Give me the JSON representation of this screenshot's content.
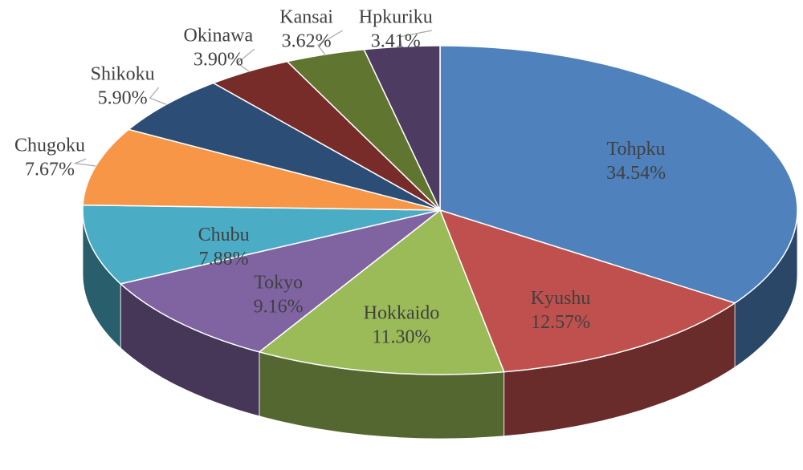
{
  "chart_data": {
    "type": "pie3d",
    "categories": [
      "Tohpku",
      "Kyushu",
      "Hokkaido",
      "Tokyo",
      "Chubu",
      "Chugoku",
      "Shikoku",
      "Okinawa",
      "Kansai",
      "Hpkuriku"
    ],
    "values": [
      34.54,
      12.57,
      11.3,
      9.16,
      7.88,
      7.67,
      5.9,
      3.9,
      3.62,
      3.41
    ],
    "value_labels": [
      "34.54%",
      "12.57%",
      "11.30%",
      "9.16%",
      "7.88%",
      "7.67%",
      "5.90%",
      "3.90%",
      "3.62%",
      "3.41%"
    ],
    "colors": [
      "#4f81bd",
      "#c0504d",
      "#9bbb59",
      "#8064a2",
      "#4bacc6",
      "#f79646",
      "#2c4d75",
      "#772c2a",
      "#5f7530",
      "#4d3b62"
    ]
  }
}
